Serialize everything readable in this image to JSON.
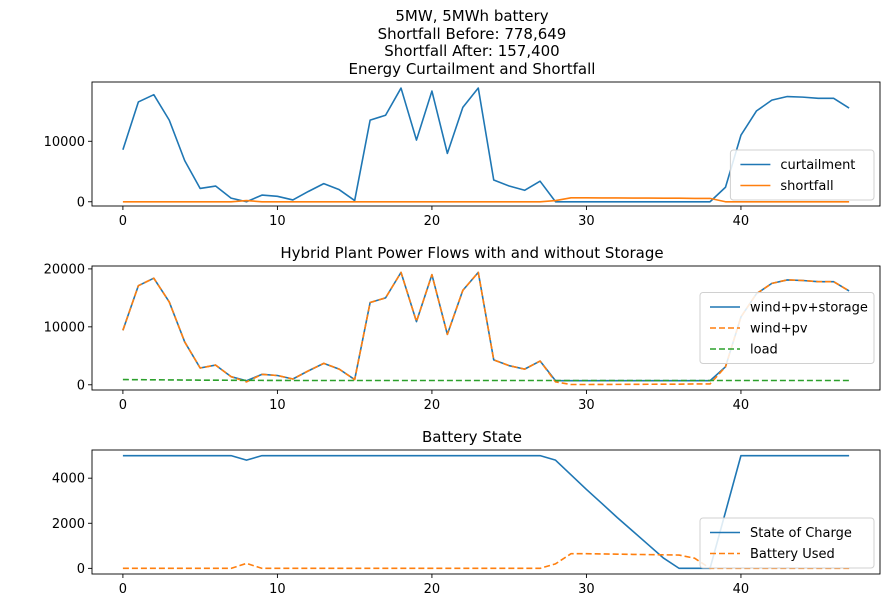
{
  "figure": {
    "title_lines": [
      "5MW, 5MWh battery",
      "Shortfall Before: 778,649",
      "Shortfall After: 157,400"
    ]
  },
  "chart_data": [
    {
      "type": "line",
      "title": "Energy Curtailment and Shortfall",
      "xlim": [
        -2,
        49
      ],
      "ylim": [
        -700,
        19800
      ],
      "xticks": [
        0,
        10,
        20,
        30,
        40
      ],
      "yticks": [
        0,
        10000
      ],
      "legend": "lower-right",
      "x": [
        0,
        1,
        2,
        3,
        4,
        5,
        6,
        7,
        8,
        9,
        10,
        11,
        12,
        13,
        14,
        15,
        16,
        17,
        18,
        19,
        20,
        21,
        22,
        23,
        24,
        25,
        26,
        27,
        28,
        29,
        30,
        31,
        32,
        33,
        34,
        35,
        36,
        37,
        38,
        39,
        40,
        41,
        42,
        43,
        44,
        45,
        46,
        47
      ],
      "series": [
        {
          "name": "curtailment",
          "color": "#1f77b4",
          "dash": "solid",
          "values": [
            8600,
            16500,
            17700,
            13500,
            6800,
            2200,
            2600,
            600,
            0,
            1100,
            900,
            300,
            1700,
            3000,
            2000,
            200,
            13500,
            14300,
            18800,
            10200,
            18300,
            8000,
            15600,
            18800,
            3600,
            2600,
            1900,
            3400,
            0,
            0,
            0,
            0,
            0,
            0,
            0,
            0,
            0,
            0,
            0,
            2400,
            11000,
            15000,
            16800,
            17400,
            17300,
            17100,
            17100,
            15500
          ]
        },
        {
          "name": "shortfall",
          "color": "#ff7f0e",
          "dash": "solid",
          "values": [
            0,
            0,
            0,
            0,
            0,
            0,
            0,
            0,
            200,
            0,
            0,
            0,
            0,
            0,
            0,
            0,
            0,
            0,
            0,
            0,
            0,
            0,
            0,
            0,
            0,
            0,
            0,
            0,
            200,
            650,
            650,
            640,
            630,
            620,
            610,
            600,
            590,
            550,
            560,
            0,
            0,
            0,
            0,
            0,
            0,
            0,
            0,
            0
          ]
        }
      ]
    },
    {
      "type": "line",
      "title": "Hybrid Plant Power Flows with and without Storage",
      "xlim": [
        -2,
        49
      ],
      "ylim": [
        -900,
        20500
      ],
      "xticks": [
        0,
        10,
        20,
        30,
        40
      ],
      "yticks": [
        0,
        10000,
        20000
      ],
      "legend": "right",
      "x": [
        0,
        1,
        2,
        3,
        4,
        5,
        6,
        7,
        8,
        9,
        10,
        11,
        12,
        13,
        14,
        15,
        16,
        17,
        18,
        19,
        20,
        21,
        22,
        23,
        24,
        25,
        26,
        27,
        28,
        29,
        30,
        31,
        32,
        33,
        34,
        35,
        36,
        37,
        38,
        39,
        40,
        41,
        42,
        43,
        44,
        45,
        46,
        47
      ],
      "series": [
        {
          "name": "wind+pv+storage",
          "color": "#1f77b4",
          "dash": "solid",
          "values": [
            9400,
            17100,
            18400,
            14300,
            7400,
            2900,
            3400,
            1400,
            700,
            1800,
            1600,
            1000,
            2400,
            3700,
            2700,
            900,
            14200,
            15000,
            19400,
            10900,
            19000,
            8700,
            16300,
            19400,
            4300,
            3300,
            2700,
            4100,
            700,
            700,
            700,
            700,
            700,
            700,
            700,
            700,
            700,
            700,
            700,
            3100,
            11700,
            15700,
            17500,
            18100,
            18000,
            17800,
            17800,
            16200
          ]
        },
        {
          "name": "wind+pv",
          "color": "#ff7f0e",
          "dash": "dashed",
          "values": [
            9400,
            17100,
            18400,
            14300,
            7400,
            2900,
            3400,
            1400,
            500,
            1800,
            1600,
            1000,
            2400,
            3700,
            2700,
            900,
            14200,
            15000,
            19400,
            10900,
            19000,
            8700,
            16300,
            19400,
            4300,
            3300,
            2700,
            4100,
            500,
            50,
            50,
            60,
            70,
            80,
            90,
            100,
            110,
            150,
            140,
            3100,
            11700,
            15700,
            17500,
            18100,
            18000,
            17800,
            17800,
            16200
          ]
        },
        {
          "name": "load",
          "color": "#2ca02c",
          "dash": "dashed",
          "values": [
            900,
            880,
            860,
            840,
            820,
            800,
            790,
            780,
            770,
            760,
            750,
            740,
            740,
            740,
            740,
            740,
            740,
            740,
            740,
            740,
            740,
            740,
            740,
            740,
            740,
            740,
            740,
            740,
            740,
            740,
            740,
            740,
            740,
            740,
            740,
            740,
            740,
            740,
            740,
            740,
            740,
            740,
            740,
            740,
            740,
            740,
            740,
            740
          ]
        }
      ]
    },
    {
      "type": "line",
      "title": "Battery State",
      "xlim": [
        -2,
        49
      ],
      "ylim": [
        -250,
        5250
      ],
      "xticks": [
        0,
        10,
        20,
        30,
        40
      ],
      "yticks": [
        0,
        2000,
        4000
      ],
      "legend": "lower-right",
      "x": [
        0,
        1,
        2,
        3,
        4,
        5,
        6,
        7,
        8,
        9,
        10,
        11,
        12,
        13,
        14,
        15,
        16,
        17,
        18,
        19,
        20,
        21,
        22,
        23,
        24,
        25,
        26,
        27,
        28,
        29,
        30,
        31,
        32,
        33,
        34,
        35,
        36,
        37,
        38,
        39,
        40,
        41,
        42,
        43,
        44,
        45,
        46,
        47
      ],
      "series": [
        {
          "name": "State of Charge",
          "color": "#1f77b4",
          "dash": "solid",
          "values": [
            5000,
            5000,
            5000,
            5000,
            5000,
            5000,
            5000,
            5000,
            4800,
            5000,
            5000,
            5000,
            5000,
            5000,
            5000,
            5000,
            5000,
            5000,
            5000,
            5000,
            5000,
            5000,
            5000,
            5000,
            5000,
            5000,
            5000,
            5000,
            4800,
            4150,
            3500,
            2880,
            2250,
            1650,
            1050,
            450,
            0,
            0,
            0,
            2500,
            5000,
            5000,
            5000,
            5000,
            5000,
            5000,
            5000,
            5000
          ]
        },
        {
          "name": "Battery Used",
          "color": "#ff7f0e",
          "dash": "dashed",
          "values": [
            0,
            0,
            0,
            0,
            0,
            0,
            0,
            0,
            220,
            0,
            0,
            0,
            0,
            0,
            0,
            0,
            0,
            0,
            0,
            0,
            0,
            0,
            0,
            0,
            0,
            0,
            0,
            0,
            200,
            650,
            650,
            640,
            630,
            620,
            610,
            600,
            590,
            450,
            0,
            0,
            0,
            0,
            0,
            0,
            0,
            0,
            0,
            0
          ]
        }
      ]
    }
  ]
}
